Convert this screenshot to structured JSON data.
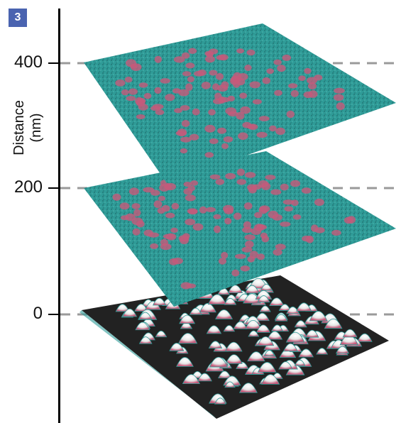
{
  "panel_label": "3",
  "axis": {
    "title_line1": "Distance",
    "title_line2": "(nm)",
    "ticks": [
      {
        "label": "400",
        "value": 400
      },
      {
        "label": "200",
        "value": 200
      },
      {
        "label": "0",
        "value": 0
      }
    ]
  },
  "colors": {
    "sheet_teal": "#2f9b97",
    "sheet_dark": "#1f6f6e",
    "spot_pink": "#c65a7a",
    "bump_white": "#f1f1f1",
    "base_black": "#222222",
    "guide_gray": "#9a9a9a"
  }
}
